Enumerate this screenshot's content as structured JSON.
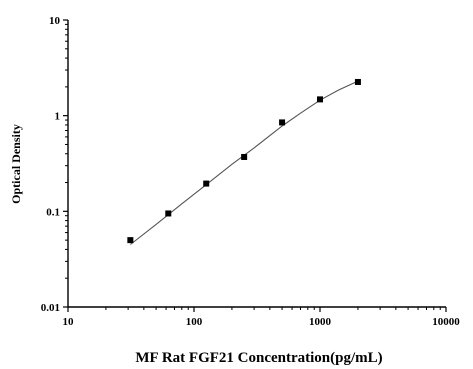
{
  "chart_data": {
    "type": "scatter",
    "xlabel": "MF Rat FGF21 Concentration(pg/mL)",
    "ylabel": "Optical Density",
    "xscale": "log",
    "yscale": "log",
    "xlim": [
      10,
      10000
    ],
    "ylim": [
      0.01,
      10
    ],
    "x_ticks": [
      {
        "value": 10,
        "label": "10"
      },
      {
        "value": 100,
        "label": "100"
      },
      {
        "value": 1000,
        "label": "1000"
      },
      {
        "value": 10000,
        "label": "10000"
      }
    ],
    "y_ticks": [
      {
        "value": 0.01,
        "label": "0.01"
      },
      {
        "value": 0.1,
        "label": "0.1"
      },
      {
        "value": 1,
        "label": "1"
      },
      {
        "value": 10,
        "label": "10"
      }
    ],
    "grid": false,
    "legend": "none",
    "marker": "square",
    "marker_color": "#000000",
    "line_color": "#555555",
    "series": [
      {
        "x": [
          31.25,
          62.5,
          125,
          250,
          500,
          1000,
          2000
        ],
        "y": [
          0.05,
          0.095,
          0.195,
          0.37,
          0.85,
          1.48,
          2.25
        ]
      }
    ],
    "fit_curve": {
      "x": [
        31.25,
        50,
        80,
        125,
        200,
        300,
        500,
        700,
        1000,
        1400,
        2000
      ],
      "y": [
        0.045,
        0.073,
        0.12,
        0.19,
        0.31,
        0.46,
        0.78,
        1.06,
        1.45,
        1.85,
        2.3
      ]
    }
  }
}
